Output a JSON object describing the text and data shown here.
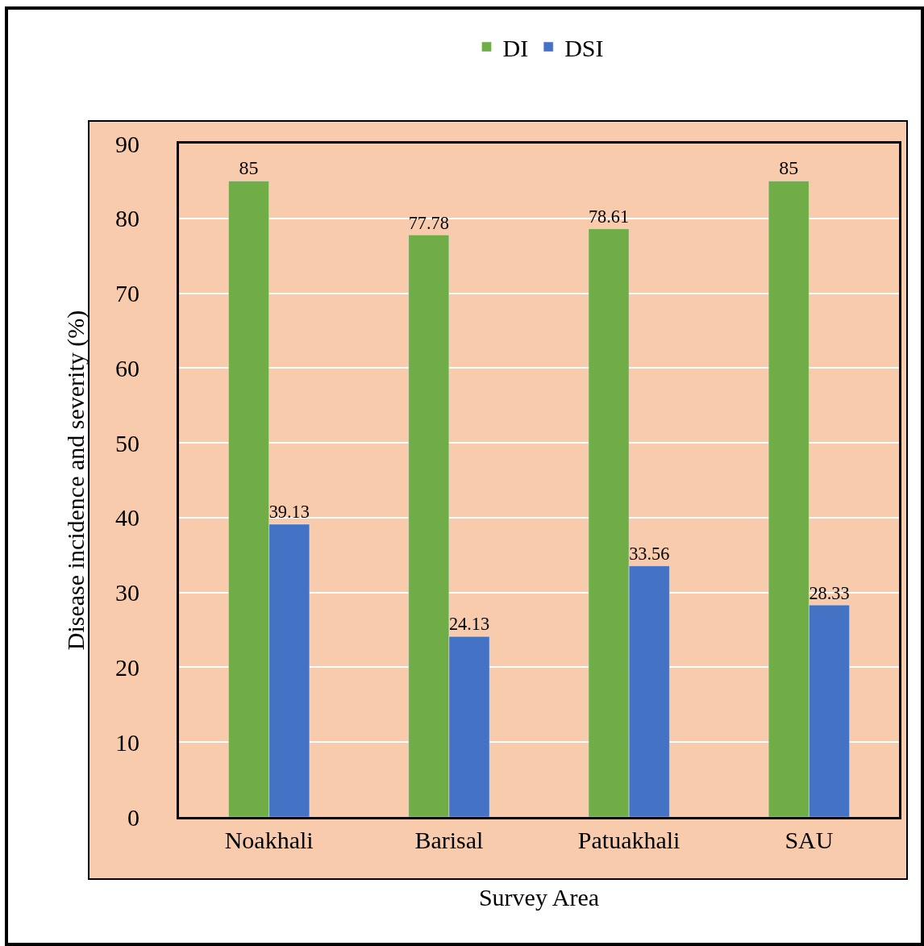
{
  "chart_data": {
    "type": "bar",
    "xlabel": "Survey Area",
    "ylabel": "Disease incidence and severity (%)",
    "categories": [
      "Noakhali",
      "Barisal",
      "Patuakhali",
      "SAU"
    ],
    "series": [
      {
        "name": "DI",
        "color": "#70ad47",
        "values": [
          85,
          77.78,
          78.61,
          85
        ]
      },
      {
        "name": "DSI",
        "color": "#4472c4",
        "values": [
          39.13,
          24.13,
          33.56,
          28.33
        ]
      }
    ],
    "ylim": [
      0,
      90
    ],
    "yticks": [
      0,
      10,
      20,
      30,
      40,
      50,
      60,
      70,
      80,
      90
    ],
    "grid": "y",
    "legend": "top",
    "data_labels": true
  }
}
